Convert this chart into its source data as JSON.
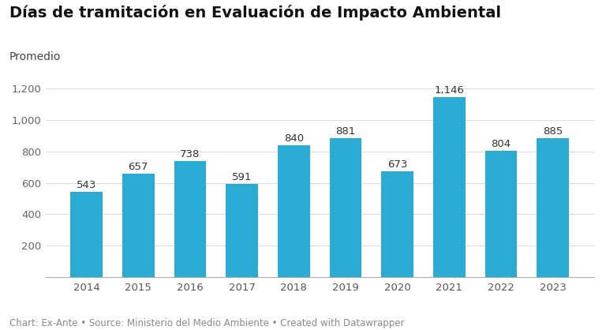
{
  "title": "Días de tramitación en Evaluación de Impacto Ambiental",
  "subtitle": "Promedio",
  "caption": "Chart: Ex-Ante • Source: Ministerio del Medio Ambiente • Created with Datawrapper",
  "categories": [
    "2014",
    "2015",
    "2016",
    "2017",
    "2018",
    "2019",
    "2020",
    "2021",
    "2022",
    "2023"
  ],
  "values": [
    543,
    657,
    738,
    591,
    840,
    881,
    673,
    1146,
    804,
    885
  ],
  "bar_color": "#29ABD4",
  "background_color": "#ffffff",
  "ylim": [
    0,
    1300
  ],
  "yticks": [
    200,
    400,
    600,
    800,
    1000,
    1200
  ],
  "ytick_labels": [
    "200",
    "400",
    "600",
    "800",
    "1,000",
    "1,200"
  ],
  "grid_color": "#d9d9d9",
  "bar_label_color": "#333333",
  "title_fontsize": 14,
  "subtitle_fontsize": 10,
  "tick_fontsize": 9.5,
  "bar_label_fontsize": 9.5,
  "caption_fontsize": 8.5
}
